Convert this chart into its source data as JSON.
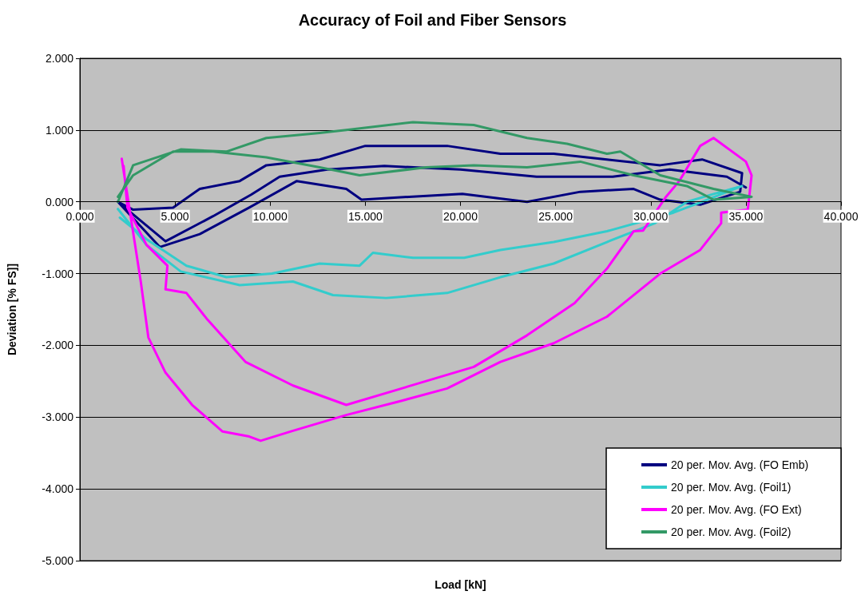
{
  "chart_data": {
    "type": "line",
    "title": "Accuracy of Foil and Fiber Sensors",
    "xlabel": "Load [kN]",
    "ylabel": "Deviation [% FS]]",
    "xlim": [
      0,
      40
    ],
    "xticks": [
      {
        "value": 0,
        "label": "0.000"
      },
      {
        "value": 5,
        "label": "5.000"
      },
      {
        "value": 10,
        "label": "10.000"
      },
      {
        "value": 15,
        "label": "15.000"
      },
      {
        "value": 20,
        "label": "20.000"
      },
      {
        "value": 25,
        "label": "25.000"
      },
      {
        "value": 30,
        "label": "30.000"
      },
      {
        "value": 35,
        "label": "35.000"
      },
      {
        "value": 40,
        "label": "40.000"
      }
    ],
    "ylim": [
      -5,
      2
    ],
    "yticks": [
      {
        "value": -5,
        "label": "-5.000"
      },
      {
        "value": -4,
        "label": "-4.000"
      },
      {
        "value": -3,
        "label": "-3.000"
      },
      {
        "value": -2,
        "label": "-2.000"
      },
      {
        "value": -1,
        "label": "-1.000"
      },
      {
        "value": 0,
        "label": "0.000"
      },
      {
        "value": 1,
        "label": "1.000"
      },
      {
        "value": 2,
        "label": "2.000"
      }
    ],
    "grid": "y",
    "legend": "bottom right",
    "marker": "none",
    "line_style": "solid",
    "series": [
      {
        "name": "20 per. Mov. Avg. (FO Emb)",
        "color": "#000080",
        "x": [
          2,
          4.2,
          6.3,
          8.9,
          11.4,
          14,
          14.8,
          17.3,
          20.1,
          23.5,
          26.3,
          29.1,
          30.5,
          32.6,
          34.7,
          34.8,
          32.7,
          30.5,
          27.7,
          24.9,
          22.1,
          19.3,
          18.2,
          15,
          12.6,
          9.8,
          8.4,
          6.3,
          4.9,
          2.8,
          2,
          4.5,
          7,
          9,
          10.5,
          13,
          16,
          20,
          24,
          28,
          31,
          34,
          35
        ],
        "values": [
          0,
          -0.63,
          -0.45,
          -0.08,
          0.29,
          0.18,
          0.03,
          0.07,
          0.11,
          0,
          0.14,
          0.18,
          0.03,
          -0.04,
          0.14,
          0.4,
          0.59,
          0.51,
          0.59,
          0.67,
          0.67,
          0.78,
          0.78,
          0.78,
          0.59,
          0.51,
          0.29,
          0.18,
          -0.08,
          -0.11,
          0,
          -0.55,
          -0.2,
          0.1,
          0.35,
          0.45,
          0.5,
          0.45,
          0.35,
          0.35,
          0.45,
          0.35,
          0.2
        ]
      },
      {
        "name": "20 per. Mov. Avg. (Foil1)",
        "color": "#33cccc",
        "x": [
          2,
          3.5,
          5.3,
          8.4,
          11.2,
          13.3,
          16.1,
          19.3,
          22.1,
          24.9,
          27.7,
          30.2,
          31.9,
          33.3,
          34.8,
          32.7,
          31.2,
          27.7,
          24.9,
          22.1,
          20.2,
          17.5,
          15.4,
          14.7,
          12.6,
          10.1,
          7.7,
          5.6,
          3.5,
          2.1
        ],
        "values": [
          -0.1,
          -0.6,
          -0.97,
          -1.16,
          -1.11,
          -1.3,
          -1.34,
          -1.27,
          -1.05,
          -0.86,
          -0.56,
          -0.3,
          0,
          0.11,
          0.22,
          0,
          -0.15,
          -0.41,
          -0.56,
          -0.67,
          -0.78,
          -0.78,
          -0.71,
          -0.89,
          -0.86,
          -1,
          -1.05,
          -0.89,
          -0.52,
          -0.22
        ]
      },
      {
        "name": "20 per. Mov. Avg. (FO Ext)",
        "color": "#ff00ff",
        "x": [
          2.2,
          3.2,
          3.6,
          4.5,
          5.9,
          7.5,
          8.9,
          9.5,
          11.2,
          14,
          16.8,
          19.3,
          22.1,
          24.9,
          27.7,
          30.5,
          32.6,
          33.7,
          33.7,
          35.1,
          35.3,
          35,
          33.3,
          32.6,
          31.5,
          30.8,
          29.6,
          29.1,
          27.7,
          26,
          23.5,
          20.7,
          14,
          11.2,
          8.7,
          6.7,
          5.6,
          4.5,
          4.6,
          3.5,
          2.5,
          2.3
        ],
        "values": [
          0.6,
          -1.11,
          -1.89,
          -2.38,
          -2.83,
          -3.2,
          -3.27,
          -3.33,
          -3.19,
          -2.97,
          -2.78,
          -2.6,
          -2.23,
          -1.97,
          -1.6,
          -1,
          -0.67,
          -0.3,
          -0.15,
          -0.11,
          0.37,
          0.56,
          0.89,
          0.78,
          0.29,
          0.07,
          -0.4,
          -0.41,
          -0.93,
          -1.41,
          -1.86,
          -2.3,
          -2.83,
          -2.56,
          -2.23,
          -1.64,
          -1.27,
          -1.22,
          -0.89,
          -0.6,
          -0.08,
          0.5
        ]
      },
      {
        "name": "20 per. Mov. Avg. (Foil2)",
        "color": "#339966",
        "x": [
          2,
          2.8,
          5.3,
          7.7,
          9.8,
          12.6,
          14,
          17.5,
          20.7,
          23.5,
          25.6,
          27.7,
          28.4,
          30.5,
          33.3,
          35.3,
          33.3,
          31.9,
          29.1,
          26.3,
          23.5,
          20.7,
          18.2,
          14.7,
          12.6,
          9.8,
          7,
          4.9,
          2.8,
          2
        ],
        "values": [
          0,
          0.51,
          0.73,
          0.7,
          0.89,
          0.96,
          1,
          1.11,
          1.07,
          0.89,
          0.81,
          0.67,
          0.7,
          0.37,
          0.18,
          0.07,
          0.03,
          0.22,
          0.37,
          0.56,
          0.48,
          0.51,
          0.48,
          0.37,
          0.48,
          0.62,
          0.7,
          0.7,
          0.37,
          0.07
        ]
      }
    ]
  }
}
